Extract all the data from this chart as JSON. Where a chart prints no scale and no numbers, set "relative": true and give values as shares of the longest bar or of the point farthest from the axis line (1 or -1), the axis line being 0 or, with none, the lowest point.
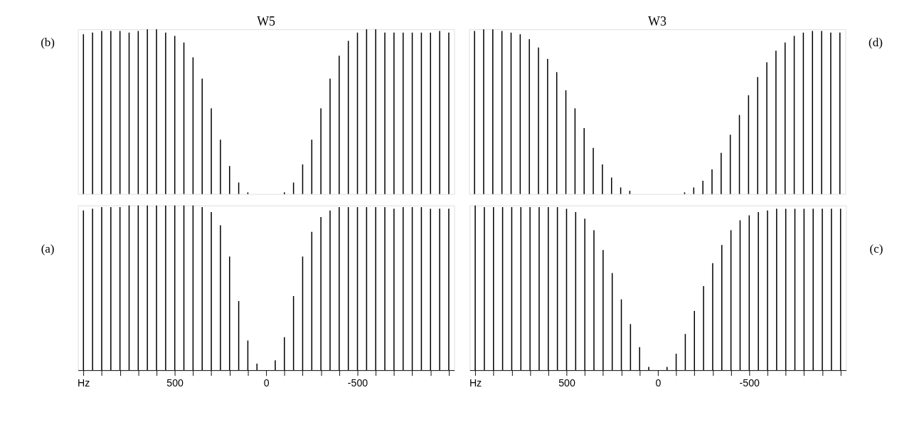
{
  "chart_data": [
    {
      "type": "bar",
      "title": "W5",
      "relative": true,
      "color": "#000000",
      "tick_labels": false,
      "annotations": [
        "(b)"
      ],
      "xlim": [
        1030,
        -1030
      ],
      "x": [
        1000,
        950,
        900,
        850,
        800,
        750,
        700,
        650,
        600,
        550,
        500,
        450,
        400,
        350,
        300,
        250,
        200,
        150,
        100,
        50,
        0,
        -50,
        -100,
        -150,
        -200,
        -250,
        -300,
        -350,
        -400,
        -450,
        -500,
        -550,
        -600,
        -650,
        -700,
        -750,
        -800,
        -850,
        -900,
        -950,
        -1000
      ],
      "values": [
        0.97,
        0.98,
        0.99,
        0.99,
        0.99,
        0.98,
        0.99,
        1.0,
        1.0,
        0.98,
        0.96,
        0.92,
        0.83,
        0.7,
        0.52,
        0.33,
        0.17,
        0.07,
        0.01,
        0,
        0,
        0,
        0.01,
        0.07,
        0.18,
        0.33,
        0.52,
        0.7,
        0.84,
        0.93,
        0.98,
        1.0,
        1.0,
        0.98,
        0.98,
        0.98,
        0.98,
        0.98,
        0.98,
        0.99,
        0.98
      ]
    },
    {
      "type": "bar",
      "title": "W3",
      "relative": true,
      "color": "#000000",
      "tick_labels": false,
      "annotations": [
        "(d)"
      ],
      "xlim": [
        1030,
        -1030
      ],
      "x": [
        1000,
        950,
        900,
        850,
        800,
        750,
        700,
        650,
        600,
        550,
        500,
        450,
        400,
        350,
        300,
        250,
        200,
        150,
        100,
        50,
        0,
        -50,
        -100,
        -150,
        -200,
        -250,
        -300,
        -350,
        -400,
        -450,
        -500,
        -550,
        -600,
        -650,
        -700,
        -750,
        -800,
        -850,
        -900,
        -950,
        -1000
      ],
      "values": [
        0.99,
        1.0,
        1.0,
        0.99,
        0.98,
        0.97,
        0.94,
        0.89,
        0.82,
        0.74,
        0.63,
        0.52,
        0.4,
        0.28,
        0.18,
        0.1,
        0.04,
        0.02,
        0,
        0,
        0,
        0,
        0,
        0.01,
        0.04,
        0.08,
        0.15,
        0.25,
        0.36,
        0.48,
        0.6,
        0.71,
        0.8,
        0.87,
        0.92,
        0.96,
        0.98,
        0.99,
        0.99,
        0.98,
        0.98
      ]
    },
    {
      "type": "bar",
      "relative": true,
      "color": "#000000",
      "tick_labels": "x",
      "annotations": [
        "(a)"
      ],
      "xlim": [
        1030,
        -1030
      ],
      "xticks": [
        {
          "value": 1000,
          "label": "Hz"
        },
        {
          "value": 900,
          "label": null
        },
        {
          "value": 800,
          "label": null
        },
        {
          "value": 700,
          "label": null
        },
        {
          "value": 600,
          "label": null
        },
        500,
        {
          "value": 400,
          "label": null
        },
        {
          "value": 300,
          "label": null
        },
        {
          "value": 200,
          "label": null
        },
        {
          "value": 100,
          "label": null
        },
        0,
        {
          "value": -100,
          "label": null
        },
        {
          "value": -200,
          "label": null
        },
        {
          "value": -300,
          "label": null
        },
        {
          "value": -400,
          "label": null
        },
        -500,
        {
          "value": -600,
          "label": null
        },
        {
          "value": -700,
          "label": null
        },
        {
          "value": -800,
          "label": null
        },
        {
          "value": -900,
          "label": null
        },
        {
          "value": -1000,
          "label": null
        }
      ],
      "x": [
        1000,
        950,
        900,
        850,
        800,
        750,
        700,
        650,
        600,
        550,
        500,
        450,
        400,
        350,
        300,
        250,
        200,
        150,
        100,
        50,
        0,
        -50,
        -100,
        -150,
        -200,
        -250,
        -300,
        -350,
        -400,
        -450,
        -500,
        -550,
        -600,
        -650,
        -700,
        -750,
        -800,
        -850,
        -900,
        -950,
        -1000
      ],
      "values": [
        0.97,
        0.98,
        0.99,
        0.99,
        0.99,
        1.0,
        1.0,
        1.0,
        1.0,
        1.0,
        1.0,
        1.0,
        1.0,
        0.99,
        0.96,
        0.88,
        0.69,
        0.42,
        0.18,
        0.04,
        0,
        0.06,
        0.2,
        0.45,
        0.69,
        0.84,
        0.93,
        0.97,
        0.99,
        0.99,
        0.99,
        0.99,
        0.99,
        0.99,
        0.98,
        0.99,
        0.99,
        0.99,
        0.98,
        0.98,
        0.98
      ]
    },
    {
      "type": "bar",
      "relative": true,
      "color": "#000000",
      "tick_labels": "x",
      "annotations": [
        "(c)"
      ],
      "xlim": [
        1030,
        -1030
      ],
      "xticks": [
        {
          "value": 1000,
          "label": "Hz"
        },
        {
          "value": 900,
          "label": null
        },
        {
          "value": 800,
          "label": null
        },
        {
          "value": 700,
          "label": null
        },
        {
          "value": 600,
          "label": null
        },
        500,
        {
          "value": 400,
          "label": null
        },
        {
          "value": 300,
          "label": null
        },
        {
          "value": 200,
          "label": null
        },
        {
          "value": 100,
          "label": null
        },
        0,
        {
          "value": -100,
          "label": null
        },
        {
          "value": -200,
          "label": null
        },
        {
          "value": -300,
          "label": null
        },
        {
          "value": -400,
          "label": null
        },
        -500,
        {
          "value": -600,
          "label": null
        },
        {
          "value": -700,
          "label": null
        },
        {
          "value": -800,
          "label": null
        },
        {
          "value": -900,
          "label": null
        },
        {
          "value": -1000,
          "label": null
        }
      ],
      "x": [
        1000,
        950,
        900,
        850,
        800,
        750,
        700,
        650,
        600,
        550,
        500,
        450,
        400,
        350,
        300,
        250,
        200,
        150,
        100,
        50,
        0,
        -50,
        -100,
        -150,
        -200,
        -250,
        -300,
        -350,
        -400,
        -450,
        -500,
        -550,
        -600,
        -650,
        -700,
        -750,
        -800,
        -850,
        -900,
        -950,
        -1000
      ],
      "values": [
        1.0,
        0.99,
        0.99,
        0.99,
        0.99,
        0.99,
        0.99,
        0.99,
        0.99,
        0.99,
        0.98,
        0.96,
        0.92,
        0.85,
        0.73,
        0.59,
        0.43,
        0.28,
        0.14,
        0.02,
        0,
        0.02,
        0.1,
        0.22,
        0.36,
        0.51,
        0.65,
        0.76,
        0.85,
        0.91,
        0.94,
        0.96,
        0.97,
        0.98,
        0.98,
        0.98,
        0.98,
        0.98,
        0.98,
        0.98,
        0.98
      ]
    }
  ]
}
